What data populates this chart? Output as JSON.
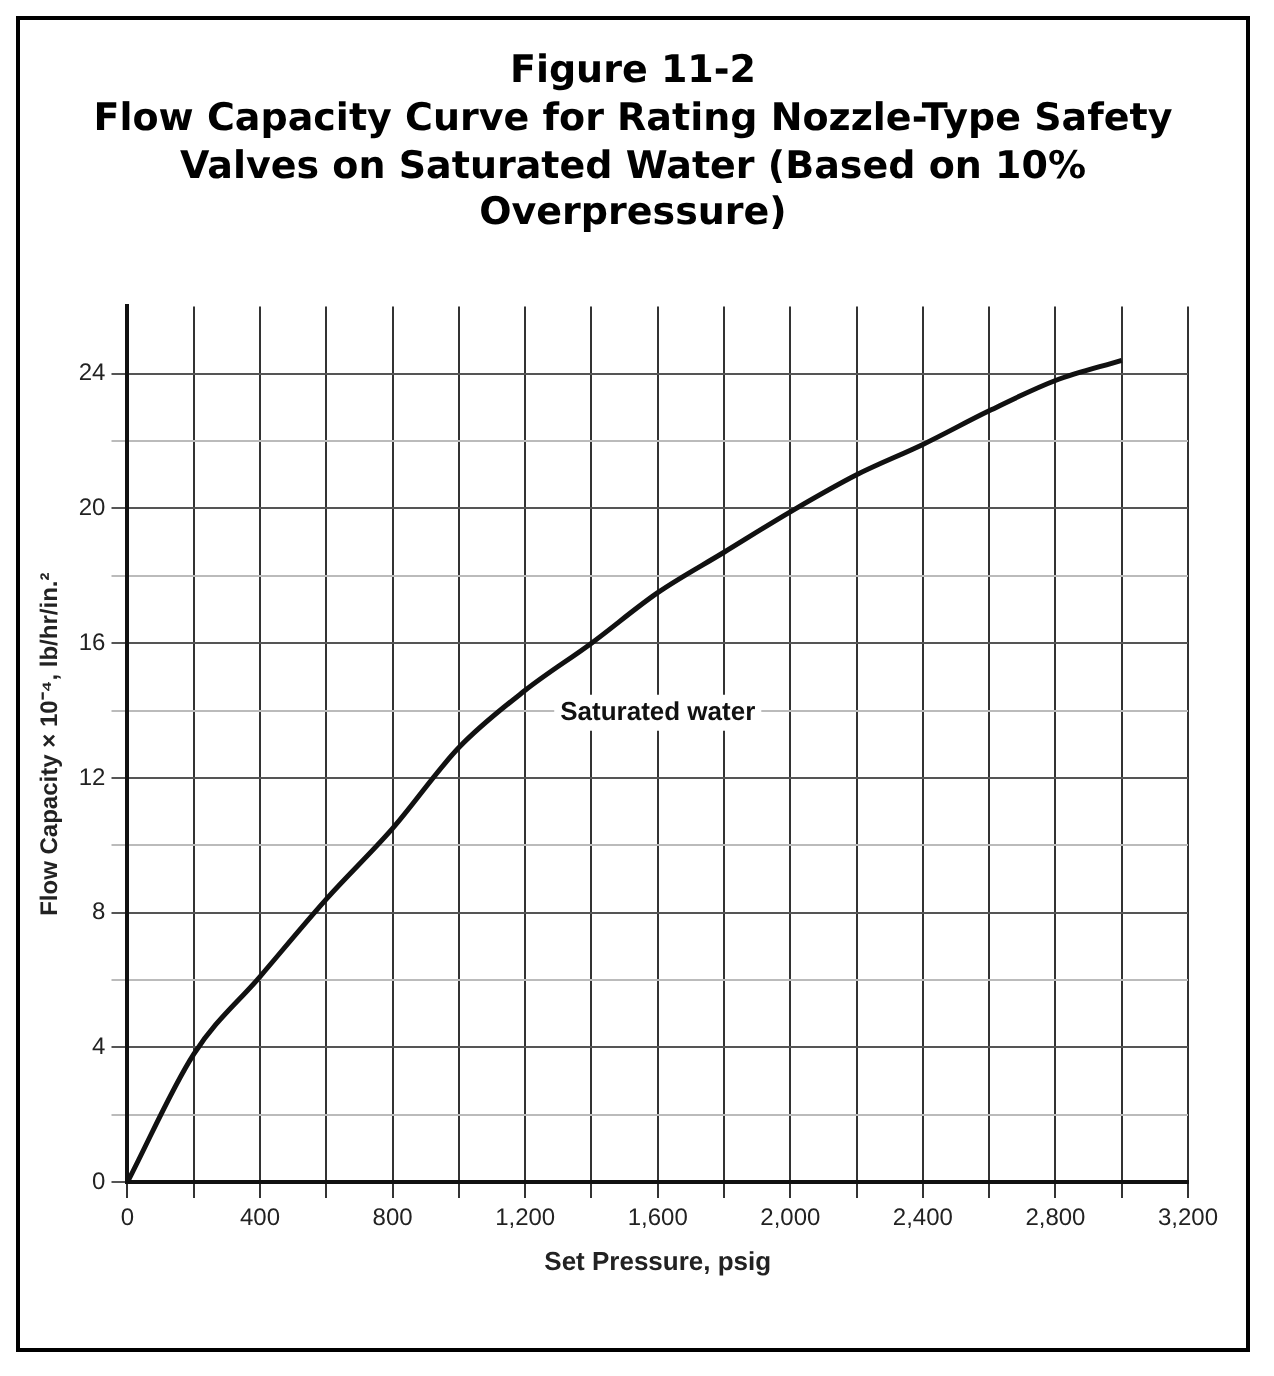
{
  "chart_data": {
    "type": "line",
    "title": "Figure 11-2",
    "subtitle": "Flow Capacity Curve for Rating Nozzle-Type Safety Valves on Saturated Water (Based on 10% Overpressure)",
    "xlabel": "Set Pressure, psig",
    "ylabel": "Flow Capacity × 10⁻⁴, lb/hr/in.²",
    "x": [
      0,
      200,
      400,
      600,
      800,
      1000,
      1200,
      1400,
      1600,
      1800,
      2000,
      2200,
      2400,
      2600,
      2800,
      3000
    ],
    "series": [
      {
        "name": "Saturated water",
        "color": "#111111",
        "values": [
          0,
          3.8,
          6.1,
          8.4,
          10.5,
          12.9,
          14.6,
          16.0,
          17.5,
          18.7,
          19.9,
          21.0,
          21.9,
          22.9,
          23.8,
          24.4
        ]
      }
    ],
    "xlim": [
      0,
      3200
    ],
    "xticks": [
      0,
      {
        "value": 200,
        "label": null
      },
      400,
      {
        "value": 600,
        "label": null
      },
      {
        "value": 800,
        "label": "800"
      },
      {
        "value": 1000,
        "label": null
      },
      {
        "value": 1200,
        "label": "1,200"
      },
      {
        "value": 1400,
        "label": null
      },
      {
        "value": 1600,
        "label": "1,600"
      },
      {
        "value": 1800,
        "label": null
      },
      {
        "value": 2000,
        "label": "2,000"
      },
      {
        "value": 2200,
        "label": null
      },
      {
        "value": 2400,
        "label": "2,400"
      },
      {
        "value": 2600,
        "label": null
      },
      {
        "value": 2800,
        "label": "2,800"
      },
      {
        "value": 3000,
        "label": null
      },
      {
        "value": 3200,
        "label": "3,200"
      }
    ],
    "ylim": [
      0,
      26
    ],
    "yticks": [
      0,
      {
        "value": 2,
        "label": null
      },
      4,
      {
        "value": 6,
        "label": null
      },
      8,
      {
        "value": 10,
        "label": null
      },
      12,
      {
        "value": 14,
        "label": null
      },
      16,
      {
        "value": 18,
        "label": null
      },
      20,
      {
        "value": 22,
        "label": null
      },
      24
    ],
    "grid": true,
    "legend": false,
    "marker": "none",
    "line_style": "solid"
  }
}
